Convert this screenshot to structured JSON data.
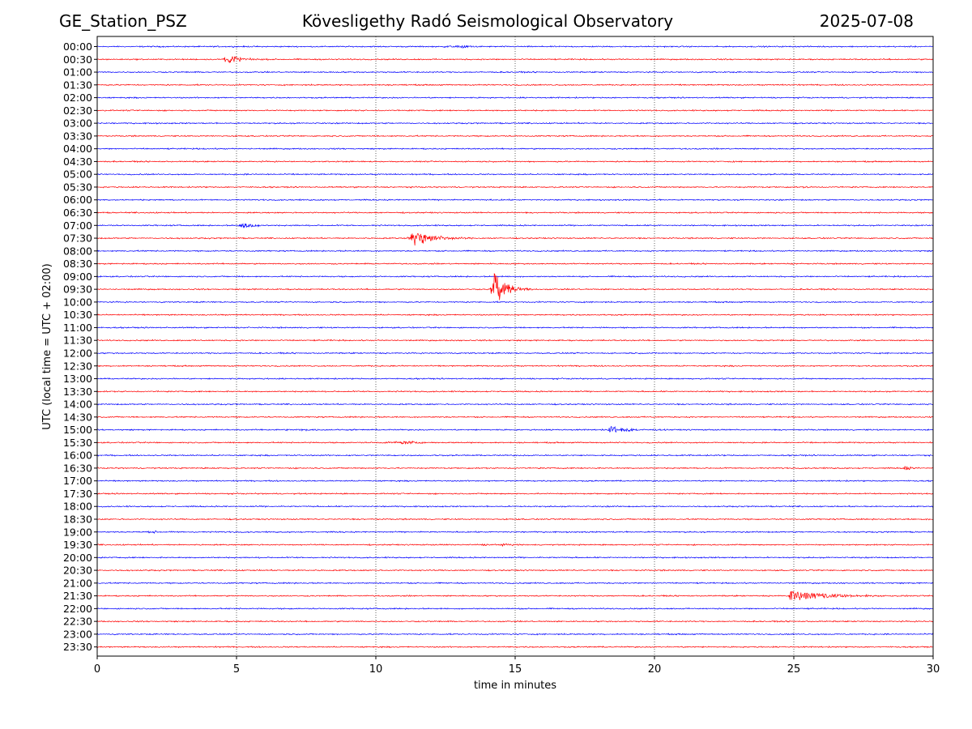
{
  "header": {
    "station": "GE_Station_PSZ",
    "observatory": "Kövesligethy Radó Seismological Observatory",
    "date": "2025-07-08"
  },
  "chart_data": {
    "type": "line",
    "title": "Kövesligethy Radó Seismological Observatory",
    "xlabel": "time in minutes",
    "ylabel": "UTC (local time = UTC + 02:00)",
    "xlim": [
      0,
      30
    ],
    "xticks": [
      0,
      5,
      10,
      15,
      20,
      25,
      30
    ],
    "x_gridlines": [
      5,
      10,
      15,
      20,
      25
    ],
    "grid": "vertical dotted",
    "trace_colors": [
      "#0000ff",
      "#ff0000"
    ],
    "rows": [
      "00:00",
      "00:30",
      "01:00",
      "01:30",
      "02:00",
      "02:30",
      "03:00",
      "03:30",
      "04:00",
      "04:30",
      "05:00",
      "05:30",
      "06:00",
      "06:30",
      "07:00",
      "07:30",
      "08:00",
      "08:30",
      "09:00",
      "09:30",
      "10:00",
      "10:30",
      "11:00",
      "11:30",
      "12:00",
      "12:30",
      "13:00",
      "13:30",
      "14:00",
      "14:30",
      "15:00",
      "15:30",
      "16:00",
      "16:30",
      "17:00",
      "17:30",
      "18:00",
      "18:30",
      "19:00",
      "19:30",
      "20:00",
      "20:30",
      "21:00",
      "21:30",
      "22:00",
      "22:30",
      "23:00",
      "23:30"
    ],
    "events": [
      {
        "row": "00:00",
        "start_min": 12.2,
        "peak_min": 13.2,
        "end_min": 14.0,
        "amplitude": 0.3
      },
      {
        "row": "00:30",
        "start_min": 4.4,
        "peak_min": 4.8,
        "end_min": 6.2,
        "amplitude": 0.9
      },
      {
        "row": "05:30",
        "start_min": 25.2,
        "peak_min": 25.5,
        "end_min": 25.8,
        "amplitude": 0.15
      },
      {
        "row": "07:00",
        "start_min": 5.0,
        "peak_min": 5.3,
        "end_min": 6.5,
        "amplitude": 0.55
      },
      {
        "row": "07:30",
        "start_min": 11.1,
        "peak_min": 11.4,
        "end_min": 13.5,
        "amplitude": 1.6
      },
      {
        "row": "08:30",
        "start_min": 24.7,
        "peak_min": 24.9,
        "end_min": 25.3,
        "amplitude": 0.15
      },
      {
        "row": "09:30",
        "start_min": 14.1,
        "peak_min": 14.25,
        "end_min": 15.6,
        "amplitude": 3.5
      },
      {
        "row": "11:00",
        "start_min": 5.3,
        "peak_min": 5.45,
        "end_min": 5.7,
        "amplitude": 0.18
      },
      {
        "row": "15:00",
        "start_min": 18.3,
        "peak_min": 18.4,
        "end_min": 20.5,
        "amplitude": 0.75
      },
      {
        "row": "15:00",
        "start_min": 6.0,
        "peak_min": 7.5,
        "end_min": 9.5,
        "amplitude": 0.12
      },
      {
        "row": "15:30",
        "start_min": 9.8,
        "peak_min": 11.2,
        "end_min": 12.4,
        "amplitude": 0.3
      },
      {
        "row": "16:30",
        "start_min": 28.9,
        "peak_min": 29.0,
        "end_min": 30.0,
        "amplitude": 0.45
      },
      {
        "row": "19:00",
        "start_min": 1.7,
        "peak_min": 2.1,
        "end_min": 2.8,
        "amplitude": 0.15
      },
      {
        "row": "19:30",
        "start_min": 12.5,
        "peak_min": 14.8,
        "end_min": 15.8,
        "amplitude": 0.15
      },
      {
        "row": "21:30",
        "start_min": 24.8,
        "peak_min": 24.9,
        "end_min": 29.0,
        "amplitude": 1.1
      }
    ]
  }
}
